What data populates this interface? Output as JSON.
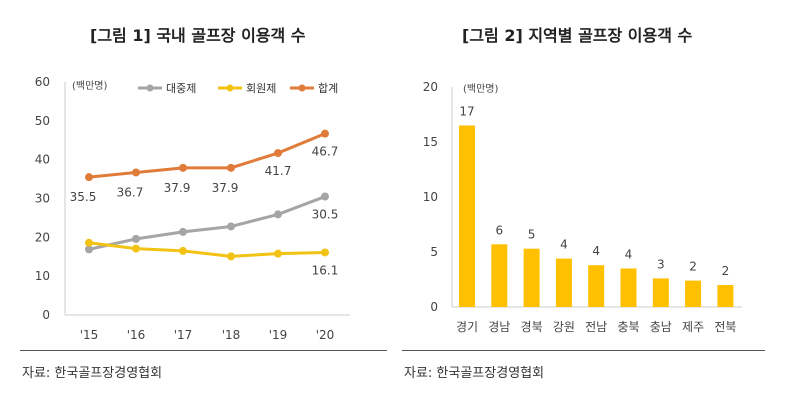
{
  "chart_data": [
    {
      "type": "line",
      "title": "[그림 1] 국내 골프장 이용객 수",
      "unit": "(백만명)",
      "categories": [
        "'15",
        "'16",
        "'17",
        "'18",
        "'19",
        "'20"
      ],
      "ylim": [
        0,
        60
      ],
      "yticks": [
        0,
        10,
        20,
        30,
        40,
        50,
        60
      ],
      "grid": false,
      "legend": "top",
      "series": [
        {
          "name": "대중제",
          "color": "#A5A5A5",
          "values": [
            16.9,
            19.6,
            21.4,
            22.8,
            25.9,
            30.5
          ],
          "labels": [
            "",
            "",
            "",
            "",
            "",
            "30.5"
          ]
        },
        {
          "name": "회원제",
          "color": "#F2C314",
          "values": [
            18.6,
            17.1,
            16.5,
            15.1,
            15.8,
            16.1
          ],
          "labels": [
            "",
            "",
            "",
            "",
            "",
            "16.1"
          ]
        },
        {
          "name": "합계",
          "color": "#E07B39",
          "values": [
            35.5,
            36.7,
            37.9,
            37.9,
            41.7,
            46.7
          ],
          "labels": [
            "35.5",
            "36.7",
            "37.9",
            "37.9",
            "41.7",
            "46.7"
          ]
        }
      ],
      "source": "자료: 한국골프장경영협회"
    },
    {
      "type": "bar",
      "title": "[그림 2] 지역별 골프장 이용객 수",
      "unit": "(백만명)",
      "categories": [
        "경기",
        "경남",
        "경북",
        "강원",
        "전남",
        "충북",
        "충남",
        "제주",
        "전북"
      ],
      "values": [
        16.5,
        5.7,
        5.3,
        4.4,
        3.8,
        3.5,
        2.6,
        2.4,
        2.0
      ],
      "labels": [
        "17",
        "6",
        "5",
        "4",
        "4",
        "4",
        "3",
        "2",
        "2"
      ],
      "ylim": [
        0,
        20
      ],
      "yticks": [
        0,
        5,
        10,
        15,
        20
      ],
      "color": "#FFC000",
      "grid": false,
      "source": "자료: 한국골프장경영협회"
    }
  ]
}
